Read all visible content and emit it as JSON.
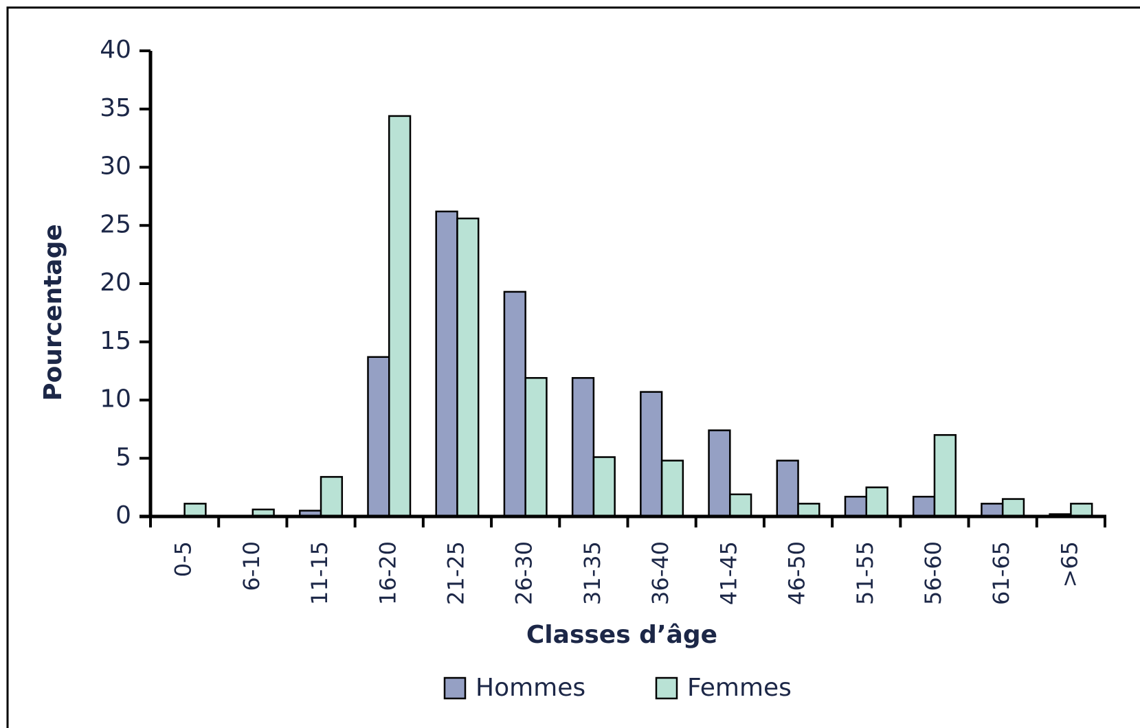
{
  "chart_data": {
    "type": "bar",
    "xlabel": "Classes d’âge",
    "ylabel": "Pourcentage",
    "categories": [
      "0-5",
      "6-10",
      "11-15",
      "16-20",
      "21-25",
      "26-30",
      "31-35",
      "36-40",
      "41-45",
      "46-50",
      "51-55",
      "56-60",
      "61-65",
      ">65"
    ],
    "series": [
      {
        "name": "Hommes",
        "color": "#95a0c4",
        "values": [
          0,
          0,
          0.5,
          13.7,
          26.2,
          19.3,
          11.9,
          10.7,
          7.4,
          4.8,
          1.7,
          1.7,
          1.1,
          0.2
        ]
      },
      {
        "name": "Femmes",
        "color": "#b9e2d5",
        "values": [
          1.1,
          0.6,
          3.4,
          34.4,
          25.6,
          11.9,
          5.1,
          4.8,
          1.9,
          1.1,
          2.5,
          7.0,
          1.5,
          1.1
        ]
      }
    ],
    "ylim": [
      0,
      40
    ],
    "yticks": [
      0,
      5,
      10,
      15,
      20,
      25,
      30,
      35,
      40
    ],
    "legend": "bottom"
  }
}
